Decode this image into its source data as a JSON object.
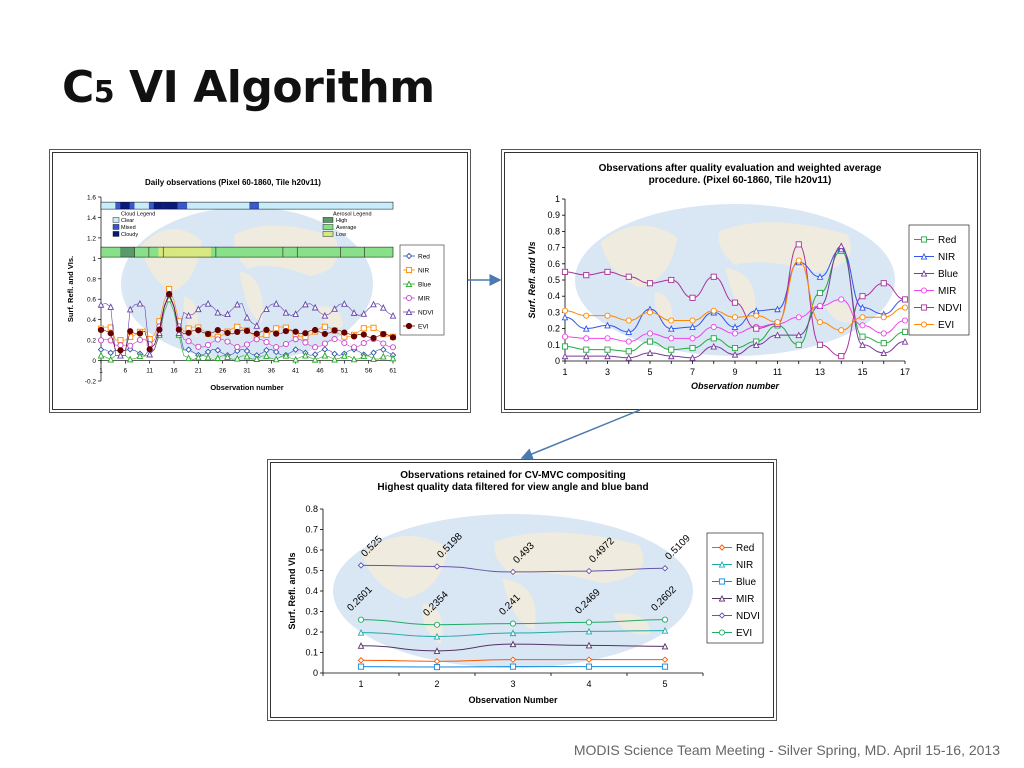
{
  "slide": {
    "title_main": "C",
    "title_sub": "5",
    "title_rest": " VI Algorithm",
    "footer": "MODIS Science Team Meeting - Silver Spring, MD. April 15-16, 2013"
  },
  "chart_data": [
    {
      "type": "line",
      "title": "Daily observations (Pixel 60-1860, Tile h20v11)",
      "xlabel": "Observation number",
      "ylabel": "Surf. Refl. and VIs.",
      "ylim": [
        -0.2,
        1.6
      ],
      "yticks": [
        "1.6",
        "1.4",
        "1.2",
        "1",
        "0.8",
        "0.6",
        "0.4",
        "0.2",
        "0",
        "-0.2"
      ],
      "xticks": [
        "1",
        "6",
        "11",
        "16",
        "21",
        "26",
        "31",
        "36",
        "41",
        "46",
        "51",
        "56",
        "61"
      ],
      "legend_position": "right",
      "cloud_legend": {
        "title": "Cloud Legend",
        "items": [
          "Clear",
          "Mixed",
          "Cloudy"
        ]
      },
      "aerosol_legend": {
        "title": "Aerosol Legend",
        "items": [
          "High",
          "Average",
          "Low"
        ]
      },
      "series_names": [
        "Red",
        "NIR",
        "Blue",
        "MIR",
        "NDVI",
        "EVI"
      ],
      "colors": {
        "Red": "#3355aa",
        "NIR": "#ff8800",
        "Blue": "#22aa22",
        "MIR": "#cc44cc",
        "NDVI": "#6644aa",
        "EVI": "#660000"
      }
    },
    {
      "type": "line",
      "title": "Observations after quality evaluation and weighted average",
      "title2": "procedure.  (Pixel 60-1860, Tile h20v11)",
      "xlabel": "Observation number",
      "ylabel": "Surf. Refl. and VIs",
      "ylim": [
        0,
        1
      ],
      "yticks": [
        "1",
        "0.9",
        "0.8",
        "0.7",
        "0.6",
        "0.5",
        "0.4",
        "0.3",
        "0.2",
        "0.1",
        "0"
      ],
      "xticks": [
        "1",
        "3",
        "5",
        "7",
        "9",
        "11",
        "13",
        "15",
        "17"
      ],
      "legend_position": "right",
      "x": [
        1,
        2,
        3,
        4,
        5,
        6,
        7,
        8,
        9,
        10,
        11,
        12,
        13,
        14,
        15,
        16,
        17
      ],
      "series": [
        {
          "name": "Red",
          "values": [
            0.09,
            0.07,
            0.07,
            0.06,
            0.12,
            0.07,
            0.08,
            0.14,
            0.08,
            0.12,
            0.22,
            0.1,
            0.42,
            0.68,
            0.15,
            0.11,
            0.18
          ]
        },
        {
          "name": "NIR",
          "values": [
            0.27,
            0.2,
            0.22,
            0.18,
            0.32,
            0.2,
            0.21,
            0.3,
            0.21,
            0.31,
            0.32,
            0.61,
            0.52,
            0.69,
            0.33,
            0.29,
            0.38
          ]
        },
        {
          "name": "Blue",
          "values": [
            0.03,
            0.03,
            0.03,
            0.02,
            0.05,
            0.03,
            0.02,
            0.09,
            0.04,
            0.1,
            0.16,
            0.16,
            0.34,
            0.71,
            0.1,
            0.05,
            0.12
          ]
        },
        {
          "name": "MIR",
          "values": [
            0.15,
            0.14,
            0.14,
            0.12,
            0.17,
            0.14,
            0.14,
            0.21,
            0.17,
            0.21,
            0.23,
            0.27,
            0.34,
            0.38,
            0.22,
            0.17,
            0.25
          ]
        },
        {
          "name": "NDVI",
          "values": [
            0.55,
            0.53,
            0.55,
            0.52,
            0.48,
            0.5,
            0.39,
            0.52,
            0.36,
            0.2,
            0.23,
            0.72,
            0.1,
            0.03,
            0.4,
            0.48,
            0.38
          ]
        },
        {
          "name": "EVI",
          "values": [
            0.31,
            0.28,
            0.28,
            0.25,
            0.3,
            0.25,
            0.25,
            0.31,
            0.27,
            0.28,
            0.24,
            0.62,
            0.24,
            0.19,
            0.27,
            0.27,
            0.33
          ]
        }
      ],
      "colors": {
        "Red": "#22aa44",
        "NIR": "#3355ee",
        "Blue": "#7a3a9a",
        "MIR": "#ee44ee",
        "NDVI": "#aa3399",
        "EVI": "#ff8800"
      }
    },
    {
      "type": "line",
      "title": "Observations retained for CV-MVC compositing",
      "title2": "Highest quality data filtered for view angle and blue band",
      "xlabel": "Observation Number",
      "ylabel": "Surf. Refl. and VIs",
      "ylim": [
        0,
        0.8
      ],
      "yticks": [
        "0.8",
        "0.7",
        "0.6",
        "0.5",
        "0.4",
        "0.3",
        "0.2",
        "0.1",
        "0"
      ],
      "xticks": [
        "1",
        "2",
        "3",
        "4",
        "5"
      ],
      "legend_position": "right",
      "x": [
        1,
        2,
        3,
        4,
        5
      ],
      "series": [
        {
          "name": "Red",
          "values": [
            0.062,
            0.057,
            0.065,
            0.065,
            0.065
          ]
        },
        {
          "name": "NIR",
          "values": [
            0.197,
            0.178,
            0.195,
            0.203,
            0.207
          ]
        },
        {
          "name": "Blue",
          "values": [
            0.031,
            0.029,
            0.031,
            0.031,
            0.031
          ]
        },
        {
          "name": "MIR",
          "values": [
            0.133,
            0.108,
            0.141,
            0.135,
            0.13
          ]
        },
        {
          "name": "NDVI",
          "values": [
            0.525,
            0.5198,
            0.493,
            0.4972,
            0.5109
          ]
        },
        {
          "name": "EVI",
          "values": [
            0.2601,
            0.2354,
            0.241,
            0.2469,
            0.2602
          ]
        }
      ],
      "ndvi_labels": [
        "0.525",
        "0.5198",
        "0.493",
        "0.4972",
        "0.5109"
      ],
      "evi_labels": [
        "0.2601",
        "0.2354",
        "0.241",
        "0.2469",
        "0.2602"
      ],
      "colors": {
        "Red": "#ff5500",
        "NIR": "#22aaaa",
        "Blue": "#1188dd",
        "MIR": "#553366",
        "NDVI": "#6655aa",
        "EVI": "#22aa66"
      }
    }
  ]
}
